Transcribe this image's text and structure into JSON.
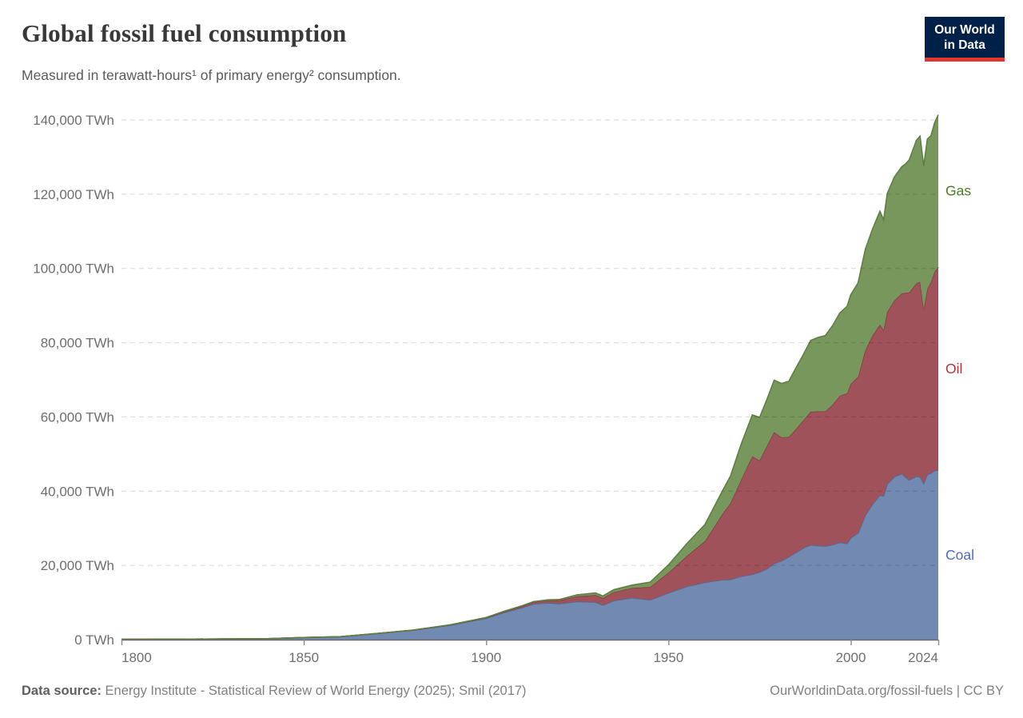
{
  "header": {
    "title": "Global fossil fuel consumption",
    "subtitle": "Measured in terawatt-hours¹ of primary energy² consumption.",
    "logo": {
      "line1": "Our World",
      "line2": "in Data",
      "bg": "#002147",
      "accent": "#e0362c"
    }
  },
  "footer": {
    "source_label": "Data source:",
    "source_text": "Energy Institute - Statistical Review of World Energy (2025); Smil (2017)",
    "credit": "OurWorldinData.org/fossil-fuels | CC BY"
  },
  "chart_data": {
    "type": "area",
    "stacked": true,
    "title": "Global fossil fuel consumption",
    "ylabel": "TWh",
    "xlim": [
      1800,
      2024
    ],
    "ylim": [
      0,
      140000
    ],
    "x_ticks": [
      1800,
      1850,
      1900,
      1950,
      2000,
      2024
    ],
    "y_ticks": [
      0,
      20000,
      40000,
      60000,
      80000,
      100000,
      120000,
      140000
    ],
    "y_tick_suffix": " TWh",
    "grid": "dashed-horizontal-above-areas",
    "legend_position": "right-edge-labels",
    "x": [
      1800,
      1810,
      1820,
      1830,
      1840,
      1850,
      1860,
      1870,
      1880,
      1890,
      1900,
      1905,
      1910,
      1913,
      1917,
      1920,
      1925,
      1930,
      1932,
      1935,
      1940,
      1945,
      1950,
      1955,
      1960,
      1965,
      1967,
      1970,
      1973,
      1975,
      1977,
      1979,
      1981,
      1983,
      1985,
      1987,
      1989,
      1991,
      1993,
      1995,
      1997,
      1999,
      2000,
      2002,
      2004,
      2006,
      2008,
      2009,
      2010,
      2012,
      2014,
      2015,
      2016,
      2018,
      2019,
      2020,
      2021,
      2022,
      2023,
      2024
    ],
    "series": [
      {
        "name": "Coal",
        "fill": "#7289b2",
        "stroke": "#4e6a99",
        "label_color": "#4d6bc0",
        "values": [
          97,
          128,
          153,
          197,
          254,
          569,
          803,
          1642,
          2542,
          3856,
          5728,
          7319,
          8656,
          9600,
          9900,
          9680,
          10280,
          10098,
          9300,
          10500,
          11261,
          10700,
          12603,
          14300,
          15442,
          16140,
          16200,
          17065,
          17584,
          18198,
          19100,
          20500,
          21200,
          22300,
          23469,
          24700,
          25500,
          25300,
          25200,
          25569,
          26200,
          25900,
          27427,
          28700,
          33500,
          36500,
          38900,
          38700,
          41907,
          43900,
          44700,
          43786,
          43000,
          44000,
          43849,
          42059,
          44473,
          44854,
          45565,
          45600
        ]
      },
      {
        "name": "Oil",
        "fill": "#a0525b",
        "stroke": "#8b3a44",
        "label_color": "#b03539",
        "values": [
          0,
          0,
          0,
          0,
          0,
          0,
          2,
          11,
          33,
          89,
          181,
          250,
          378,
          470,
          600,
          889,
          1400,
          1935,
          1900,
          2300,
          2653,
          3500,
          5444,
          8200,
          11096,
          17989,
          20550,
          26131,
          31800,
          30104,
          33100,
          35400,
          33300,
          32300,
          33300,
          34400,
          35900,
          36200,
          36300,
          37700,
          39500,
          40500,
          41500,
          42100,
          44500,
          45500,
          46000,
          44700,
          46400,
          47500,
          48600,
          49600,
          50500,
          52000,
          52500,
          47000,
          50000,
          51500,
          53600,
          54800
        ]
      },
      {
        "name": "Gas",
        "fill": "#77975d",
        "stroke": "#5d8040",
        "label_color": "#4b7a27",
        "values": [
          0,
          0,
          0,
          0,
          0,
          0,
          0,
          0,
          6,
          33,
          64,
          100,
          147,
          190,
          230,
          233,
          400,
          564,
          560,
          650,
          789,
          1300,
          2092,
          3300,
          4472,
          6304,
          7300,
          9614,
          11170,
          11567,
          12500,
          14000,
          14500,
          15000,
          16500,
          17700,
          19200,
          19900,
          20400,
          21300,
          22300,
          23400,
          24000,
          25300,
          27200,
          28700,
          30500,
          29700,
          31858,
          33300,
          34100,
          34741,
          35700,
          38500,
          39292,
          38532,
          40375,
          39413,
          40110,
          41000
        ]
      }
    ]
  }
}
